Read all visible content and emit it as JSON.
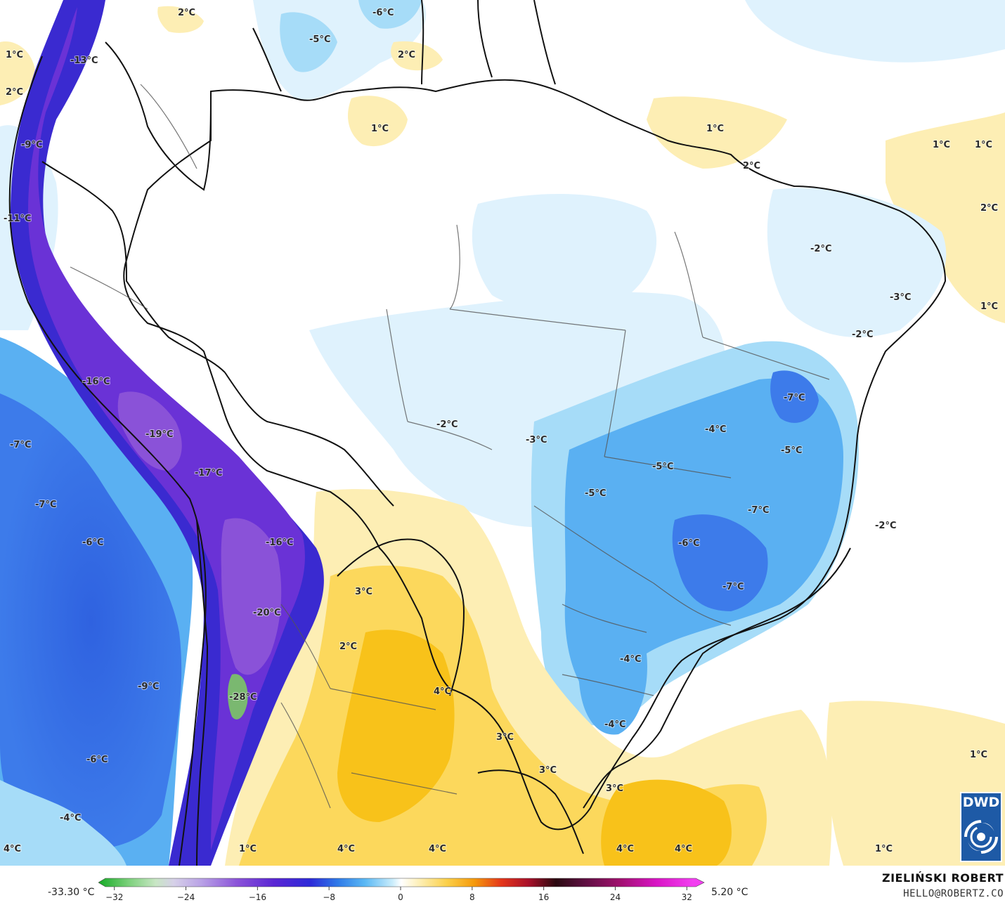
{
  "map": {
    "colors": {
      "ocean_warm": "#fde59a",
      "deep_blue": "#3d7bea",
      "mid_blue": "#5ab0f2",
      "light_blue": "#a6dcf8",
      "pale_blue": "#dff2fd",
      "pale_yellow": "#fdeeb4",
      "yellow": "#fcd85c",
      "deep_yellow": "#f8c21a",
      "andes_purple": "#6a32d6",
      "andes_violet": "#8a52d8",
      "andes_indigo": "#3a2ad0",
      "peak_green": "#7ab870",
      "border": "#111111",
      "state_border": "#555555"
    },
    "labels": [
      {
        "text": "1°C"
      },
      {
        "text": "2°C"
      },
      {
        "text": "-13°C"
      },
      {
        "text": "2°C"
      },
      {
        "text": "-9°C"
      },
      {
        "text": "-11°C"
      },
      {
        "text": "2°C"
      },
      {
        "text": "-6°C"
      },
      {
        "text": "-5°C"
      },
      {
        "text": "2°C"
      },
      {
        "text": "1°C"
      },
      {
        "text": "1°C"
      },
      {
        "text": "1°C"
      },
      {
        "text": "1°C"
      },
      {
        "text": "2°C"
      },
      {
        "text": "2°C"
      },
      {
        "text": "-2°C"
      },
      {
        "text": "-3°C"
      },
      {
        "text": "1°C"
      },
      {
        "text": "-2°C"
      },
      {
        "text": "-16°C"
      },
      {
        "text": "-19°C"
      },
      {
        "text": "-17°C"
      },
      {
        "text": "-7°C"
      },
      {
        "text": "-7°C"
      },
      {
        "text": "-6°C"
      },
      {
        "text": "-16°C"
      },
      {
        "text": "-2°C"
      },
      {
        "text": "-3°C"
      },
      {
        "text": "-7°C"
      },
      {
        "text": "-4°C"
      },
      {
        "text": "-5°C"
      },
      {
        "text": "-5°C"
      },
      {
        "text": "-5°C"
      },
      {
        "text": "-7°C"
      },
      {
        "text": "-2°C"
      },
      {
        "text": "-6°C"
      },
      {
        "text": "-7°C"
      },
      {
        "text": "3°C"
      },
      {
        "text": "-20°C"
      },
      {
        "text": "2°C"
      },
      {
        "text": "-4°C"
      },
      {
        "text": "-9°C"
      },
      {
        "text": "4°C"
      },
      {
        "text": "-28°C"
      },
      {
        "text": "4°C"
      },
      {
        "text": "-4°C"
      },
      {
        "text": "3°C"
      },
      {
        "text": "-6°C"
      },
      {
        "text": "3°C"
      },
      {
        "text": "3°C"
      },
      {
        "text": "1°C"
      },
      {
        "text": "-4°C"
      },
      {
        "text": "4°C"
      },
      {
        "text": "1°C"
      },
      {
        "text": "4°C"
      },
      {
        "text": "4°C"
      },
      {
        "text": "4°C"
      },
      {
        "text": "4°C"
      },
      {
        "text": "1°C"
      }
    ]
  },
  "legend": {
    "min_label": "-33.30 °C",
    "max_label": "5.20 °C",
    "ticks": [
      "−32",
      "−24",
      "−16",
      "−8",
      "0",
      "8",
      "16",
      "24",
      "32"
    ],
    "stops": [
      {
        "value": -33,
        "color": "#1fae2e"
      },
      {
        "value": -30,
        "color": "#7bd07a"
      },
      {
        "value": -27,
        "color": "#c8e6c4"
      },
      {
        "value": -25,
        "color": "#d6d0e8"
      },
      {
        "value": -22,
        "color": "#b9a2e6"
      },
      {
        "value": -18,
        "color": "#8a52d8"
      },
      {
        "value": -14,
        "color": "#5a26d4"
      },
      {
        "value": -10,
        "color": "#2d2ad8"
      },
      {
        "value": -7,
        "color": "#2f7ae8"
      },
      {
        "value": -4,
        "color": "#5ab8f4"
      },
      {
        "value": -1,
        "color": "#c8ecfb"
      },
      {
        "value": 0,
        "color": "#ffffff"
      },
      {
        "value": 2,
        "color": "#fdefb6"
      },
      {
        "value": 5,
        "color": "#fbd04a"
      },
      {
        "value": 8,
        "color": "#f59a0c"
      },
      {
        "value": 11,
        "color": "#e4361a"
      },
      {
        "value": 14,
        "color": "#a8102a"
      },
      {
        "value": 17,
        "color": "#2a0a10"
      },
      {
        "value": 20,
        "color": "#5a0f3e"
      },
      {
        "value": 24,
        "color": "#a0106e"
      },
      {
        "value": 28,
        "color": "#d814c4"
      },
      {
        "value": 32,
        "color": "#f23ef0"
      }
    ]
  },
  "credits": {
    "author": "ZIELIŃSKI ROBERT",
    "email": "HELLO@ROBERTZ.CO"
  },
  "logo": {
    "text": "DWD"
  }
}
